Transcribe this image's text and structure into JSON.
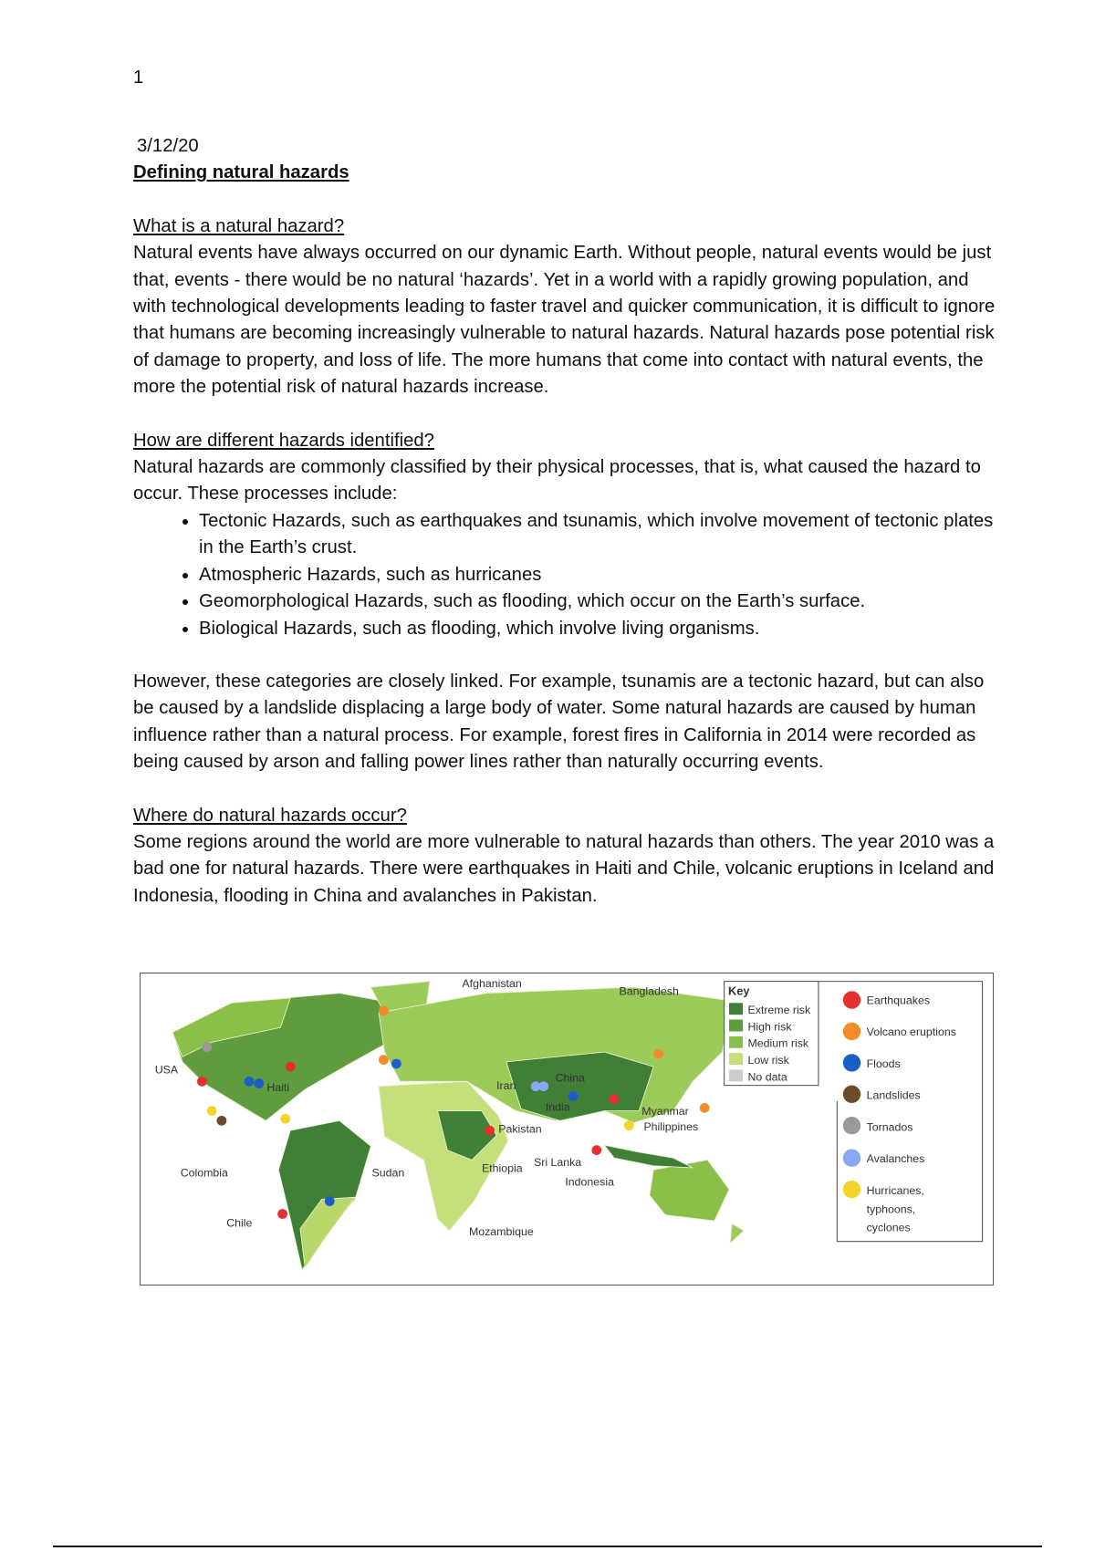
{
  "page_number": "1",
  "date": "3/12/20",
  "title": "Defining natural hazards",
  "sections": [
    {
      "heading": "What is a natural hazard?",
      "paragraphs": [
        "Natural events have always occurred on our dynamic Earth. Without people, natural events would be just that, events - there would be no natural ‘hazards’. Yet in a world with a rapidly growing population, and with technological developments leading to faster travel and quicker communication, it is difficult to ignore that humans are becoming increasingly vulnerable to natural hazards. Natural hazards pose potential risk of damage to property, and loss of life. The more humans that come into contact with natural events, the more the potential risk of natural hazards increase."
      ]
    },
    {
      "heading": "How are different hazards identified?",
      "paragraphs": [
        "Natural hazards are commonly classified by their physical processes, that is, what caused the hazard to occur. These processes include:"
      ],
      "bullets": [
        "Tectonic Hazards, such as earthquakes and tsunamis, which involve movement of tectonic plates in the Earth’s crust.",
        "Atmospheric Hazards, such as hurricanes",
        "Geomorphological Hazards, such as flooding, which occur on the Earth’s surface.",
        "Biological Hazards, such as flooding, which involve living organisms."
      ],
      "closing": "However, these categories are closely linked. For example, tsunamis are a tectonic hazard, but can also be caused by a landslide displacing a large body of water. Some natural hazards are caused by human influence rather than a natural process. For example, forest fires in California in 2014 were recorded as being caused by arson and falling power lines rather than naturally occurring events."
    },
    {
      "heading": "Where do natural hazards occur?",
      "paragraphs": [
        "Some regions around the world are more vulnerable to natural hazards than others. The year 2010 was a bad one for natural hazards. There were earthquakes in Haiti and Chile, volcanic eruptions in Iceland and Indonesia, flooding in China and avalanches in Pakistan."
      ]
    }
  ],
  "map": {
    "places": [
      "Afghanistan",
      "Bangladesh",
      "USA",
      "Haiti",
      "Colombia",
      "Chile",
      "Sudan",
      "Ethiopia",
      "Pakistan",
      "Iran",
      "India",
      "China",
      "Sri Lanka",
      "Indonesia",
      "Myanmar",
      "Philippines",
      "Mozambique"
    ],
    "key_title": "Key",
    "risk_levels": [
      "Extreme risk",
      "High risk",
      "Medium risk",
      "Low risk",
      "No data"
    ],
    "hazards": [
      "Earthquakes",
      "Volcano eruptions",
      "Floods",
      "Landslides",
      "Tornados",
      "Avalanches",
      "Hurricanes, typhoons, cyclones"
    ]
  }
}
